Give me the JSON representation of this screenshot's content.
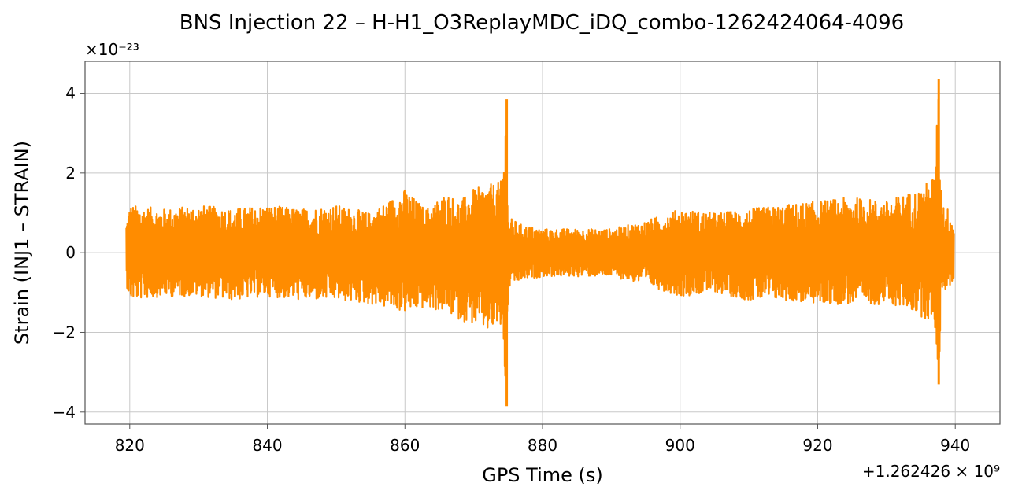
{
  "chart_data": {
    "type": "line",
    "title": "BNS Injection 22 – H-H1_O3ReplayMDC_iDQ_combo-1262424064-4096",
    "xlabel": "GPS Time (s)",
    "ylabel": "Strain (INJ1 – STRAIN)",
    "x_offset_label": "+1.262426 × 10⁹",
    "y_scale_label": "×10⁻²³",
    "xlim": [
      813.5,
      946.5
    ],
    "ylim": [
      -4.3,
      4.8
    ],
    "x_ticks": [
      820,
      840,
      860,
      880,
      900,
      920,
      940
    ],
    "x_tick_labels": [
      "820",
      "840",
      "860",
      "880",
      "900",
      "920",
      "940"
    ],
    "y_ticks": [
      -4,
      -2,
      0,
      2,
      4
    ],
    "y_tick_labels": [
      "−4",
      "−2",
      "0",
      "2",
      "4"
    ],
    "grid": true,
    "line_color": "#ff8c00",
    "series": [
      {
        "x": [
          819.5,
          820,
          825,
          830,
          835,
          840,
          845,
          850,
          855,
          860,
          863,
          866,
          868,
          870,
          872,
          874,
          874.8,
          875,
          877,
          880,
          885,
          890,
          895,
          900,
          905,
          910,
          915,
          920,
          925,
          930,
          933,
          935,
          936,
          937,
          937.6,
          938,
          939,
          939.8
        ],
        "y_upper": [
          0.8,
          1.2,
          1.1,
          1.2,
          1.1,
          1.2,
          1.1,
          1.2,
          1.0,
          1.6,
          1.1,
          1.5,
          1.3,
          1.6,
          1.7,
          1.8,
          3.85,
          0.9,
          0.7,
          0.6,
          0.6,
          0.6,
          0.8,
          1.1,
          1.0,
          1.1,
          1.2,
          1.3,
          1.4,
          1.3,
          1.5,
          1.6,
          1.8,
          2.0,
          4.35,
          1.3,
          1.1,
          0.8
        ],
        "y_lower": [
          -0.8,
          -1.2,
          -1.1,
          -1.1,
          -1.2,
          -1.1,
          -1.2,
          -1.2,
          -1.3,
          -1.5,
          -1.4,
          -1.5,
          -1.7,
          -1.8,
          -2.0,
          -1.9,
          -3.85,
          -0.9,
          -0.7,
          -0.6,
          -0.6,
          -0.6,
          -0.8,
          -1.1,
          -1.0,
          -1.2,
          -1.2,
          -1.3,
          -1.3,
          -1.3,
          -1.4,
          -1.6,
          -1.7,
          -1.8,
          -3.3,
          -1.0,
          -0.9,
          -0.7
        ]
      }
    ]
  }
}
